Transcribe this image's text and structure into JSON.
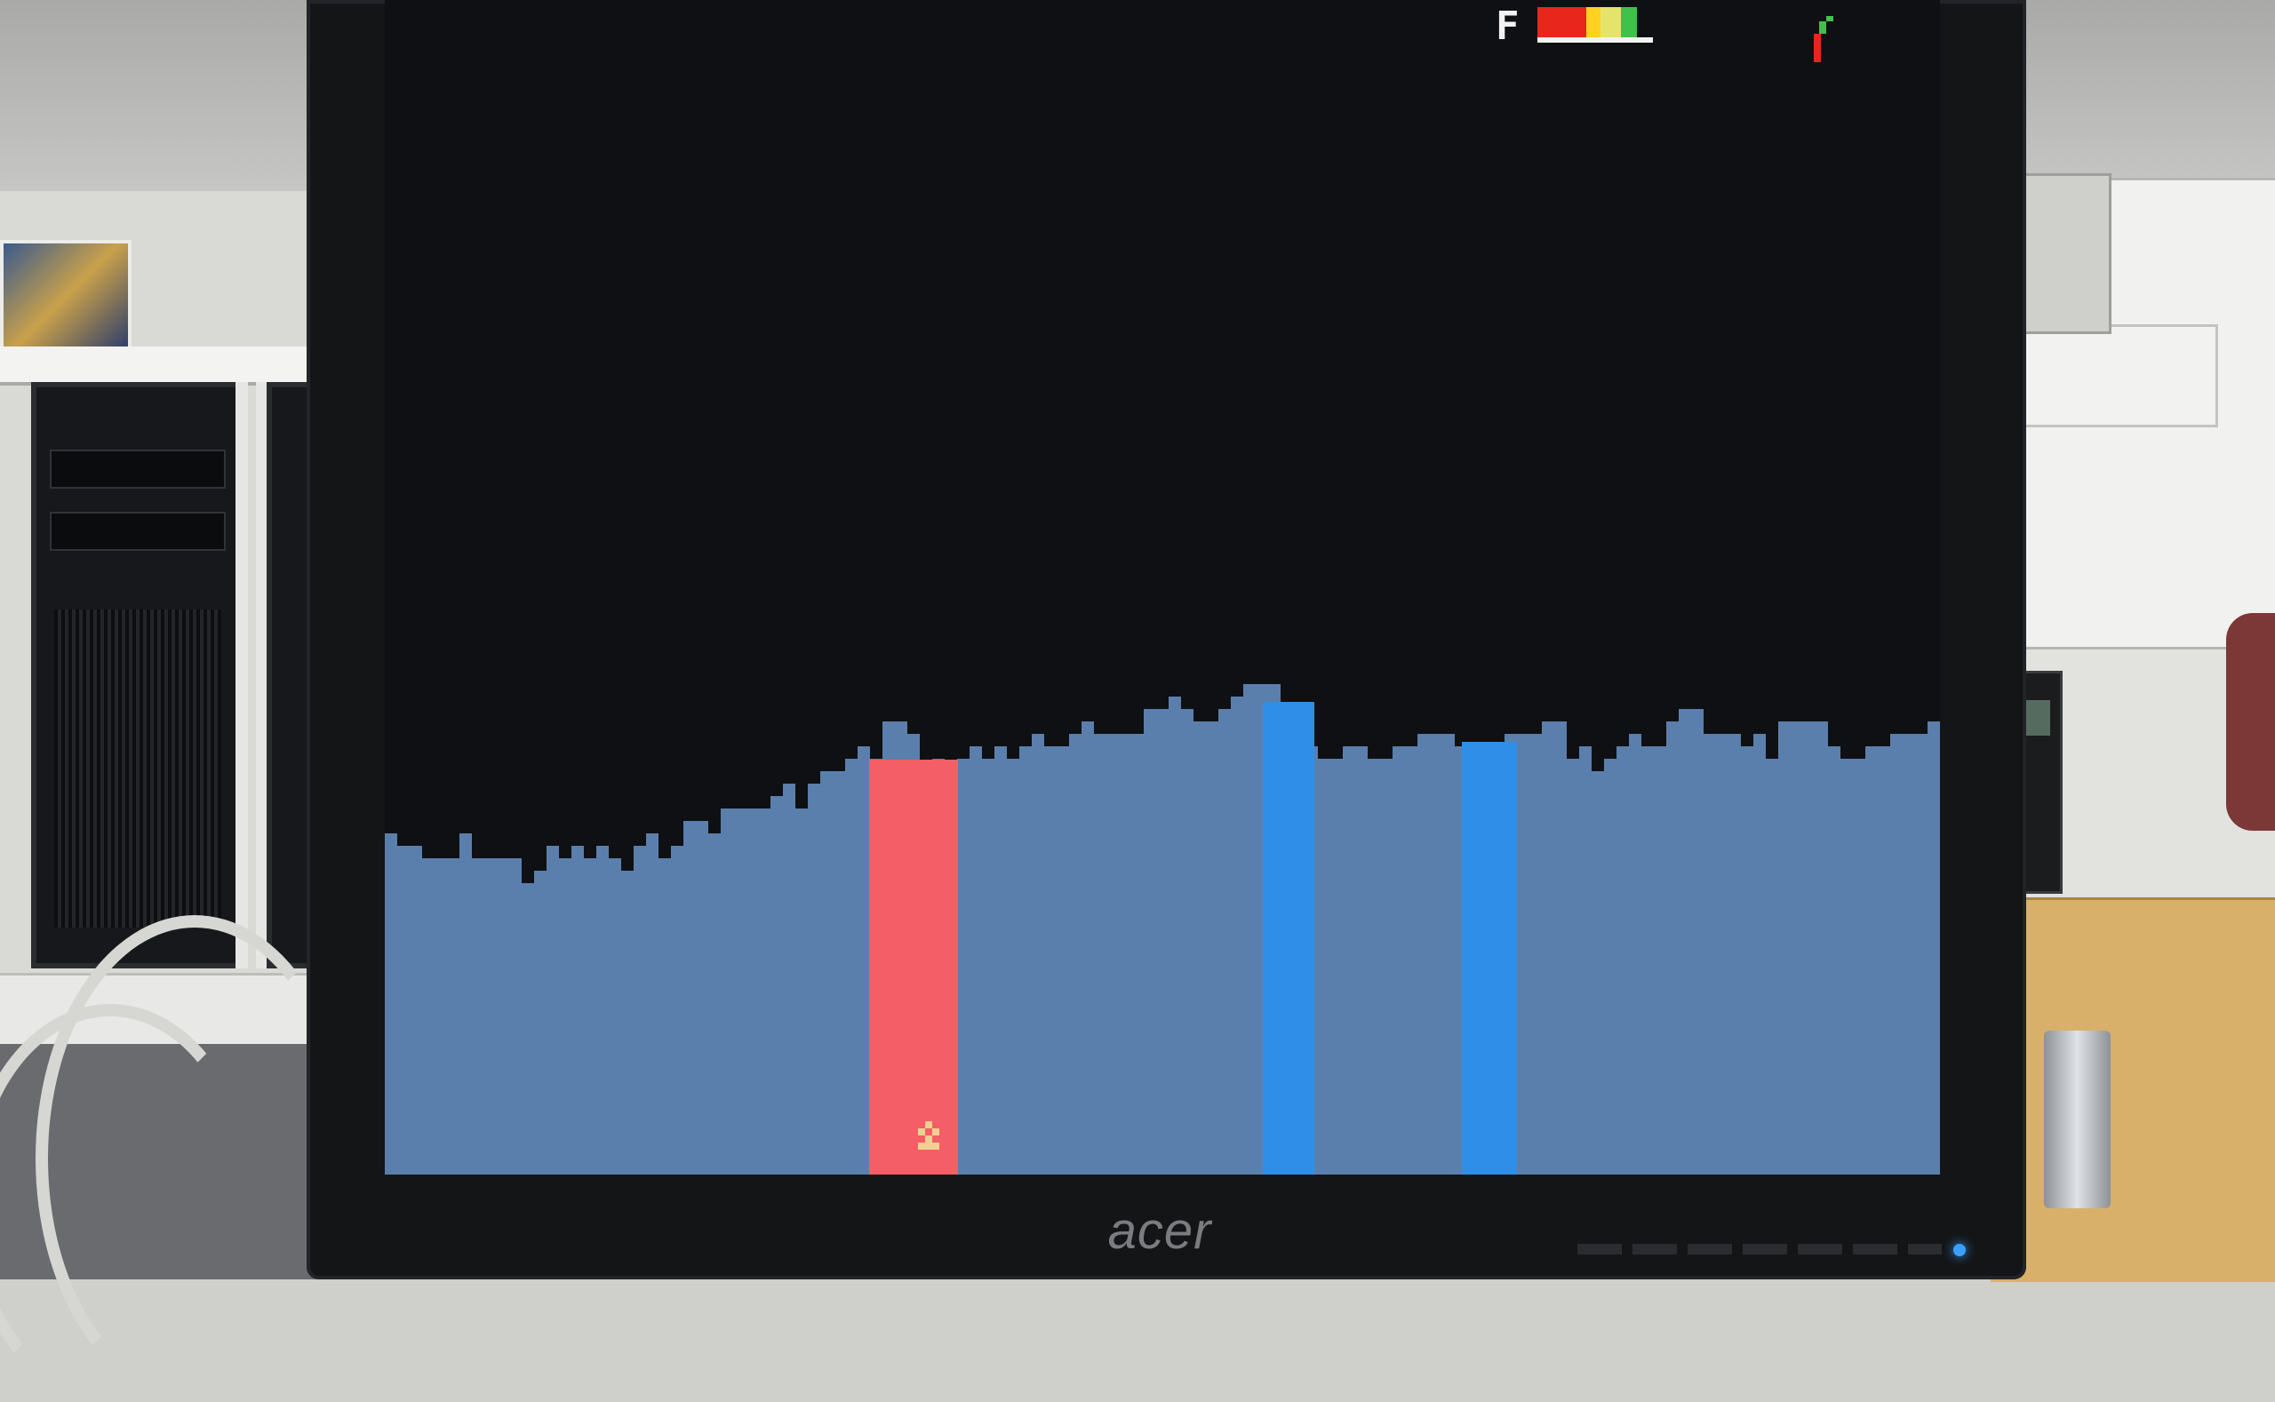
{
  "scene": {
    "monitor_brand": "acer"
  },
  "hud": {
    "fuel_label": "F",
    "fuel_gauge_segments": [
      {
        "color": "#e8261c",
        "fraction": 0.42
      },
      {
        "color": "#ffd21f",
        "fraction": 0.12
      },
      {
        "color": "#e4e46a",
        "fraction": 0.18
      },
      {
        "color": "#3ec24a",
        "fraction": 0.14
      }
    ],
    "speed_indicator_colors": [
      "#3ec24a",
      "#e8261c"
    ]
  },
  "game": {
    "background_color": "#0f1013",
    "terrain_color": "#5b7fad",
    "pads": [
      {
        "name": "red-landing-pad",
        "color": "#f45e66"
      },
      {
        "name": "blue-landing-pad-1",
        "color": "#2f8fe8"
      },
      {
        "name": "blue-landing-pad-2",
        "color": "#2f8fe8"
      }
    ],
    "player_craft_color": "#f0d090"
  }
}
